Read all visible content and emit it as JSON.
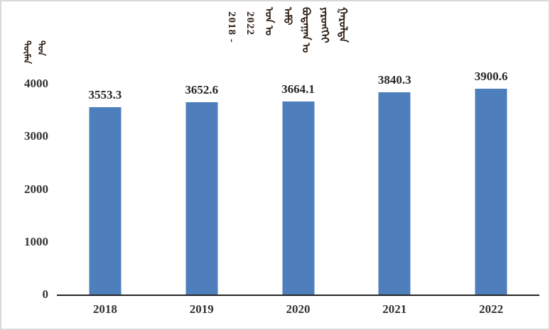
{
  "window": {
    "kind": "embedded-chart-image",
    "background": "#ffffff",
    "border_color": "#d9d9d9"
  },
  "chart_data": {
    "type": "bar",
    "title": "2018 - 2022 ᠣᠨ ᠤ ᠠᠮᠤ ᠪᠤᠳᠠᠭᠠᠨ ᠤ ᠶᠡᠷᠦᠩᠬᠡᠢ ᠭᠠᠷᠤᠯᠲᠠ",
    "title_script": "mongolian-vertical",
    "title_columns": [
      "2018 -",
      "2022",
      "ᠣᠨ ᠤ",
      "ᠠᠮᠤ",
      "ᠪᠤᠳᠠᠭᠠᠨ ᠤ",
      "ᠶᠡᠷᠦᠩᠬᠡᠢ",
      "ᠭᠠᠷᠤᠯᠲᠠ"
    ],
    "ylabel": "ᠲᠦᠮᠡᠨ ᠲᠣᠨ",
    "ylabel_columns": [
      "ᠲᠦᠮᠡᠨ",
      "ᠲᠣᠨ"
    ],
    "xlabel": "",
    "categories": [
      "2018",
      "2019",
      "2020",
      "2021",
      "2022"
    ],
    "values": [
      3553.3,
      3652.6,
      3664.1,
      3840.3,
      3900.6
    ],
    "value_labels": [
      "3553.3",
      "3652.6",
      "3664.1",
      "3840.3",
      "3900.6"
    ],
    "ylim": [
      0,
      4000
    ],
    "yticks": [
      0,
      1000,
      2000,
      3000,
      4000
    ],
    "grid": false,
    "legend": null,
    "bar_color": "#4E7EBB",
    "axis_line_color": "#262626",
    "value_label_color": "#262626",
    "tick_label_color": "#333333",
    "title_color": "#2e1f15"
  }
}
